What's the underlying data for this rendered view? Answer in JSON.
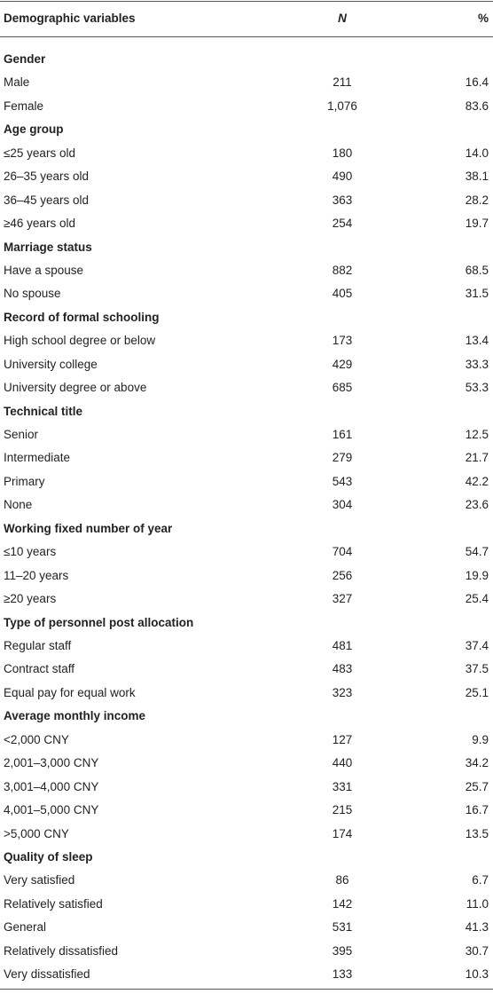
{
  "table": {
    "header": [
      "Demographic variables",
      "N",
      "%"
    ],
    "groups": [
      {
        "title": "Gender",
        "rows": [
          [
            "Male",
            "211",
            "16.4"
          ],
          [
            "Female",
            "1,076",
            "83.6"
          ]
        ]
      },
      {
        "title": "Age group",
        "rows": [
          [
            "≤25 years old",
            "180",
            "14.0"
          ],
          [
            "26–35 years old",
            "490",
            "38.1"
          ],
          [
            "36–45 years old",
            "363",
            "28.2"
          ],
          [
            "≥46 years old",
            "254",
            "19.7"
          ]
        ]
      },
      {
        "title": "Marriage status",
        "rows": [
          [
            "Have a spouse",
            "882",
            "68.5"
          ],
          [
            "No spouse",
            "405",
            "31.5"
          ]
        ]
      },
      {
        "title": "Record of formal schooling",
        "rows": [
          [
            "High school degree or below",
            "173",
            "13.4"
          ],
          [
            "University college",
            "429",
            "33.3"
          ],
          [
            "University degree or above",
            "685",
            "53.3"
          ]
        ]
      },
      {
        "title": "Technical title",
        "rows": [
          [
            "Senior",
            "161",
            "12.5"
          ],
          [
            "Intermediate",
            "279",
            "21.7"
          ],
          [
            "Primary",
            "543",
            "42.2"
          ],
          [
            "None",
            "304",
            "23.6"
          ]
        ]
      },
      {
        "title": "Working fixed number of year",
        "rows": [
          [
            "≤10 years",
            "704",
            "54.7"
          ],
          [
            "11–20 years",
            "256",
            "19.9"
          ],
          [
            "≥20 years",
            "327",
            "25.4"
          ]
        ]
      },
      {
        "title": "Type of personnel post allocation",
        "rows": [
          [
            "Regular staff",
            "481",
            "37.4"
          ],
          [
            "Contract staff",
            "483",
            "37.5"
          ],
          [
            "Equal pay for equal work",
            "323",
            "25.1"
          ]
        ]
      },
      {
        "title": "Average monthly income",
        "rows": [
          [
            "<2,000 CNY",
            "127",
            "9.9"
          ],
          [
            "2,001–3,000 CNY",
            "440",
            "34.2"
          ],
          [
            "3,001–4,000 CNY",
            "331",
            "25.7"
          ],
          [
            "4,001–5,000 CNY",
            "215",
            "16.7"
          ],
          [
            ">5,000 CNY",
            "174",
            "13.5"
          ]
        ]
      },
      {
        "title": "Quality of sleep",
        "rows": [
          [
            "Very satisfied",
            "86",
            "6.7"
          ],
          [
            "Relatively satisfied",
            "142",
            "11.0"
          ],
          [
            "General",
            "531",
            "41.3"
          ],
          [
            "Relatively dissatisfied",
            "395",
            "30.7"
          ],
          [
            "Very dissatisfied",
            "133",
            "10.3"
          ]
        ]
      }
    ]
  }
}
